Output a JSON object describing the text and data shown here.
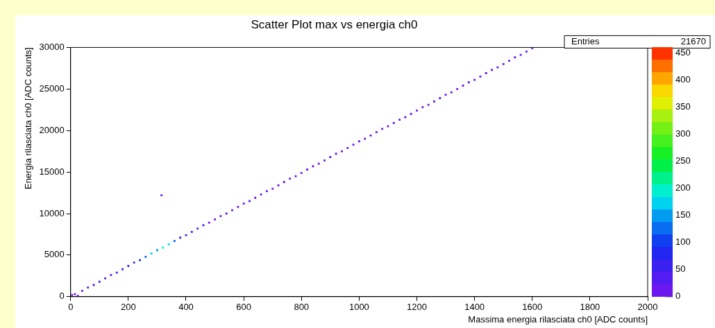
{
  "chart_data": {
    "type": "scatter",
    "title": "Scatter Plot max vs energia ch0",
    "xlabel": "Massima energia rilasciata ch0 [ADC counts]",
    "ylabel": "Energia rilasciata ch0 [ADC counts]",
    "annotations": [
      "Entries",
      "21670"
    ],
    "x": [
      5,
      15,
      25,
      315,
      40,
      60,
      80,
      100,
      120,
      140,
      160,
      180,
      200,
      220,
      240,
      260,
      280,
      300,
      320,
      340,
      360,
      380,
      400,
      420,
      440,
      460,
      480,
      500,
      520,
      540,
      560,
      580,
      600,
      620,
      640,
      660,
      680,
      700,
      720,
      740,
      760,
      780,
      800,
      820,
      840,
      860,
      880,
      900,
      920,
      940,
      960,
      980,
      1000,
      1020,
      1040,
      1060,
      1080,
      1100,
      1120,
      1140,
      1160,
      1180,
      1200,
      1220,
      1240,
      1260,
      1280,
      1300,
      1320,
      1340,
      1360,
      1380,
      1400,
      1420,
      1440,
      1460,
      1480,
      1500,
      1520,
      1540,
      1560,
      1580,
      1600
    ],
    "values": [
      200,
      300,
      100,
      12200,
      700,
      1100,
      1400,
      1800,
      2200,
      2600,
      2900,
      3300,
      3700,
      4100,
      4400,
      4800,
      5200,
      5600,
      5900,
      6300,
      6700,
      7100,
      7400,
      7800,
      8200,
      8600,
      8900,
      9300,
      9700,
      10000,
      10400,
      10800,
      11200,
      11500,
      11900,
      12300,
      12700,
      13000,
      13400,
      13800,
      14200,
      14500,
      14900,
      15300,
      15700,
      16000,
      16400,
      16800,
      17200,
      17500,
      17900,
      18300,
      18700,
      19000,
      19400,
      19800,
      20200,
      20500,
      20900,
      21300,
      21600,
      22000,
      22400,
      22800,
      23100,
      23500,
      23900,
      24300,
      24600,
      25000,
      25400,
      25800,
      26100,
      26500,
      26900,
      27300,
      27600,
      28000,
      28400,
      28800,
      29100,
      29500,
      29900
    ],
    "cvalues": [
      10,
      10,
      10,
      5,
      20,
      25,
      25,
      30,
      30,
      35,
      40,
      40,
      50,
      60,
      80,
      120,
      180,
      150,
      200,
      170,
      130,
      90,
      60,
      40,
      30,
      25,
      20,
      20,
      20,
      15,
      15,
      15,
      15,
      15,
      15,
      15,
      15,
      15,
      15,
      15,
      15,
      15,
      15,
      15,
      15,
      15,
      15,
      15,
      15,
      15,
      15,
      15,
      15,
      15,
      15,
      15,
      15,
      15,
      15,
      15,
      15,
      15,
      15,
      15,
      15,
      15,
      15,
      15,
      15,
      15,
      15,
      15,
      10,
      10,
      10,
      10,
      10,
      10,
      10,
      10,
      10,
      10,
      10
    ],
    "xlim": [
      0,
      2000
    ],
    "xticks": [
      0,
      200,
      400,
      600,
      800,
      1000,
      1200,
      1400,
      1600,
      1800,
      2000
    ],
    "ylim": [
      0,
      30000
    ],
    "yticks": [
      0,
      5000,
      10000,
      15000,
      20000,
      25000,
      30000
    ],
    "clim": [
      0,
      460
    ],
    "cticks": [
      0,
      50,
      100,
      150,
      200,
      250,
      300,
      350,
      400,
      450
    ],
    "marker": "square",
    "grid": false,
    "legend": false
  }
}
